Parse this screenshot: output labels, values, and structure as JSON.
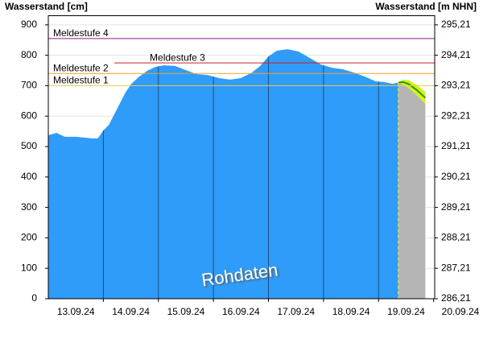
{
  "chart_data": {
    "type": "area",
    "y_label": "Wasserstand [cm]",
    "y2_label": "Wasserstand [m NHN]",
    "annotation": "Rohdaten",
    "grid": true,
    "xlim": [
      0,
      7.02
    ],
    "xticks": [
      {
        "value": 0.5,
        "label": "13.09.24"
      },
      {
        "value": 1.5,
        "label": "14.09.24"
      },
      {
        "value": 2.5,
        "label": "15.09.24"
      },
      {
        "value": 3.5,
        "label": "16.09.24"
      },
      {
        "value": 4.5,
        "label": "17.09.24"
      },
      {
        "value": 5.5,
        "label": "18.09.24"
      },
      {
        "value": 6.5,
        "label": "19.09.24"
      },
      {
        "value": 7.5,
        "label": "20.09.24"
      }
    ],
    "ylim": [
      0,
      930
    ],
    "yticks": [
      0,
      100,
      200,
      300,
      400,
      500,
      600,
      700,
      800,
      900
    ],
    "y2lim": [
      286.21,
      295.51
    ],
    "y2ticks": [
      {
        "value": 286.21,
        "label": "286,21"
      },
      {
        "value": 287.21,
        "label": "287,21"
      },
      {
        "value": 288.21,
        "label": "288,21"
      },
      {
        "value": 289.21,
        "label": "289,21"
      },
      {
        "value": 290.21,
        "label": "290,21"
      },
      {
        "value": 291.21,
        "label": "291,21"
      },
      {
        "value": 292.21,
        "label": "292,21"
      },
      {
        "value": 293.21,
        "label": "293,21"
      },
      {
        "value": 294.21,
        "label": "294,21"
      },
      {
        "value": 295.21,
        "label": "295,21"
      }
    ],
    "series": [
      {
        "color": "#2e9cf8",
        "x": [
          0,
          0.15,
          0.3,
          0.5,
          0.8,
          0.9,
          1.0,
          1.1,
          1.25,
          1.4,
          1.5,
          1.65,
          1.8,
          1.95,
          2.1,
          2.3,
          2.5,
          2.7,
          2.9,
          3.1,
          3.3,
          3.5,
          3.7,
          3.85,
          4.0,
          4.15,
          4.35,
          4.55,
          4.75,
          4.95,
          5.15,
          5.35,
          5.55,
          5.75,
          5.95,
          6.1,
          6.25,
          6.36
        ],
        "values": [
          537,
          545,
          532,
          532,
          527,
          527,
          553,
          571,
          624,
          677,
          704,
          730,
          749,
          762,
          767,
          765,
          751,
          738,
          735,
          725,
          720,
          725,
          743,
          765,
          796,
          815,
          820,
          812,
          791,
          770,
          759,
          754,
          743,
          730,
          714,
          712,
          706,
          710
        ]
      }
    ],
    "forecast": {
      "line_color": "#1a9a1a",
      "band_color": "#d8f018",
      "area_color": "#b4b4b4",
      "x": [
        6.36,
        6.45,
        6.55,
        6.7,
        6.85
      ],
      "values": [
        710,
        712,
        705,
        685,
        660
      ],
      "upper": [
        712,
        720,
        718,
        702,
        680
      ],
      "lower": [
        708,
        704,
        692,
        668,
        640
      ]
    },
    "now_x": 6.36,
    "now_color": "#f5e642",
    "thresholds": [
      {
        "label": "Meldestufe 1",
        "value": 700,
        "color": "#f0d040",
        "x_start": 0
      },
      {
        "label": "Meldestufe 2",
        "value": 740,
        "color": "#f0a030",
        "x_start": 0
      },
      {
        "label": "Meldestufe 3",
        "value": 775,
        "color": "#d02020",
        "x_start": 1.2
      },
      {
        "label": "Meldestufe 4",
        "value": 855,
        "color": "#8a1a8a",
        "x_start": 0
      }
    ]
  }
}
